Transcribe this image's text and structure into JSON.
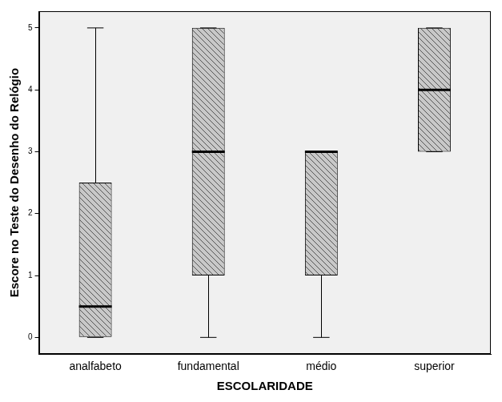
{
  "chart_data": {
    "type": "boxplot",
    "x_label": "ESCOLARIDADE",
    "y_label": "Escore no Teste do Desenho do Relógio",
    "categories": [
      "analfabeto",
      "fundamental",
      "médio",
      "superior"
    ],
    "min": [
      0,
      0,
      0,
      3
    ],
    "q1": [
      0,
      1,
      1,
      3
    ],
    "median": [
      0.5,
      3,
      3,
      4
    ],
    "q3": [
      2.5,
      5,
      3,
      5
    ],
    "max": [
      5,
      5,
      3,
      5
    ],
    "color": "#c8c8c8",
    "ylim": [
      -0.27,
      5.27
    ],
    "yticks": [
      0,
      1,
      2,
      3,
      4,
      5
    ],
    "grid": false
  }
}
